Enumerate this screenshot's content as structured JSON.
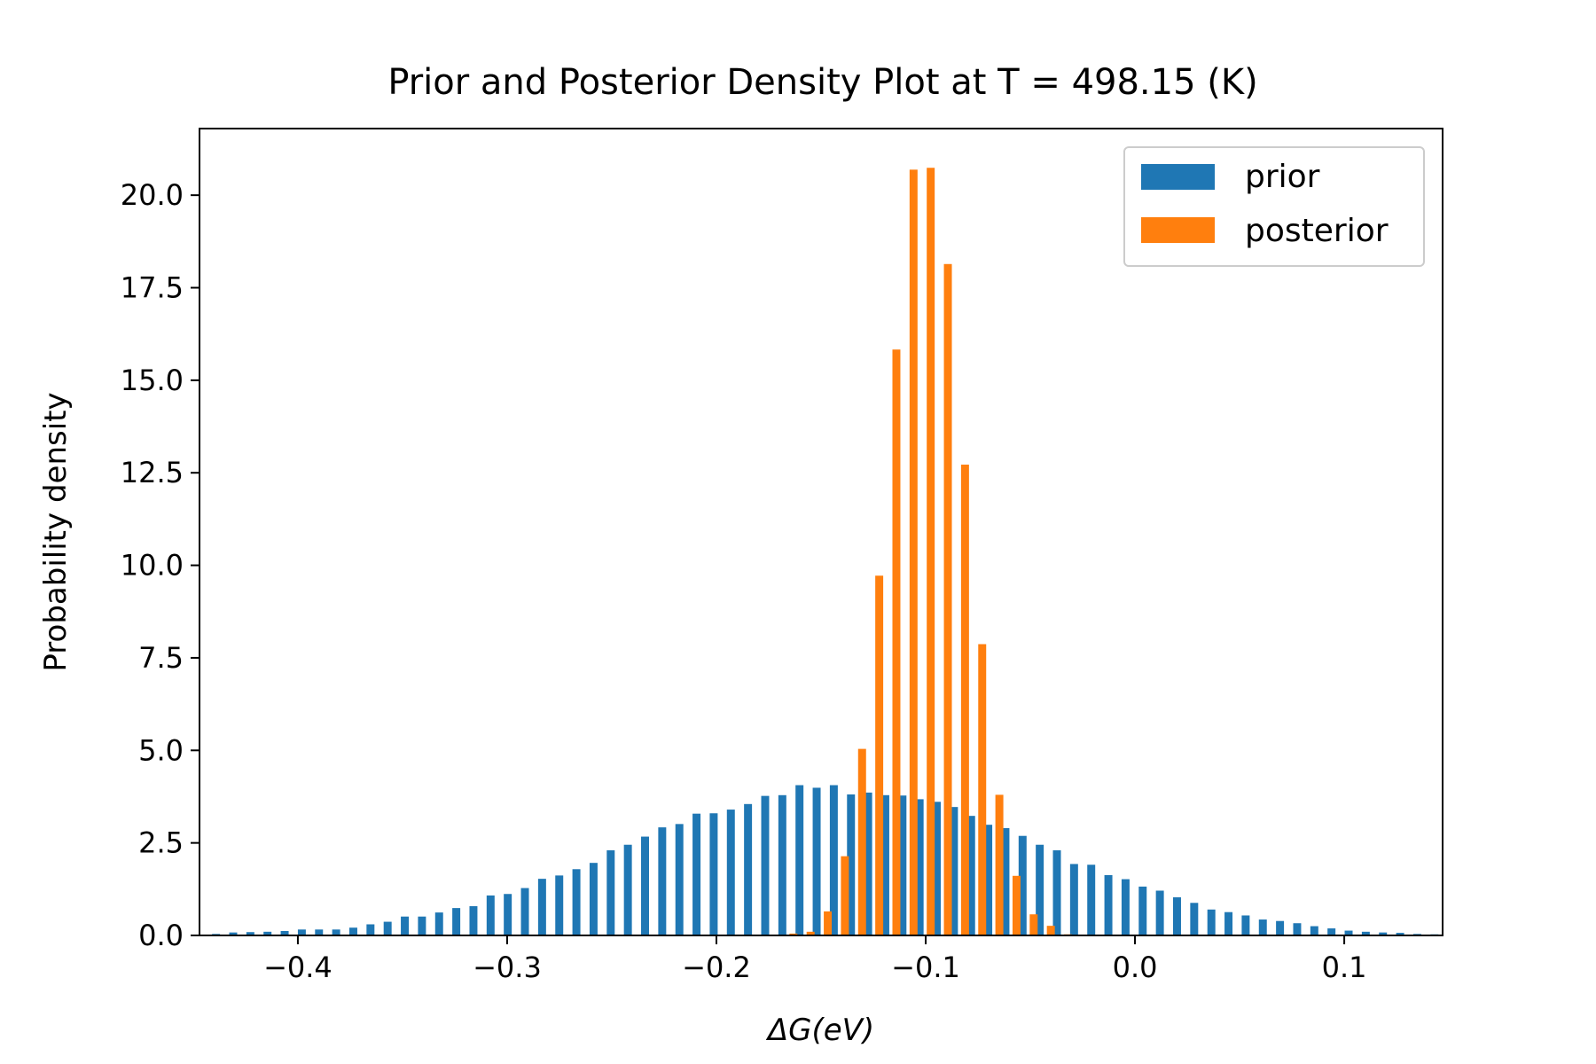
{
  "chart_data": {
    "type": "bar",
    "title": "Prior and Posterior Density Plot at T = 498.15 (K)",
    "xlabel": "ΔG(eV)",
    "ylabel": "Probability density",
    "xlim": [
      -0.447,
      0.147
    ],
    "ylim": [
      0,
      21.8
    ],
    "grid": false,
    "legend_position": "top-right",
    "x_ticks": [
      {
        "value": -0.4,
        "label": "−0.4"
      },
      {
        "value": -0.3,
        "label": "−0.3"
      },
      {
        "value": -0.2,
        "label": "−0.2"
      },
      {
        "value": -0.1,
        "label": "−0.1"
      },
      {
        "value": 0.0,
        "label": "0.0"
      },
      {
        "value": 0.1,
        "label": "0.1"
      }
    ],
    "y_ticks": [
      {
        "value": 0.0,
        "label": "0.0"
      },
      {
        "value": 2.5,
        "label": "2.5"
      },
      {
        "value": 5.0,
        "label": "5.0"
      },
      {
        "value": 7.5,
        "label": "7.5"
      },
      {
        "value": 10.0,
        "label": "10.0"
      },
      {
        "value": 12.5,
        "label": "12.5"
      },
      {
        "value": 15.0,
        "label": "15.0"
      },
      {
        "value": 17.5,
        "label": "17.5"
      },
      {
        "value": 20.0,
        "label": "20.0"
      }
    ],
    "series": [
      {
        "name": "prior",
        "color": "#1f77b4",
        "bin_start": -0.441,
        "bin_width": 0.0082,
        "bar_width": 0.0038,
        "values": [
          0.04,
          0.08,
          0.09,
          0.1,
          0.12,
          0.16,
          0.16,
          0.16,
          0.21,
          0.3,
          0.37,
          0.51,
          0.51,
          0.62,
          0.74,
          0.79,
          1.08,
          1.12,
          1.28,
          1.53,
          1.62,
          1.79,
          1.96,
          2.3,
          2.45,
          2.67,
          2.92,
          3.01,
          3.29,
          3.3,
          3.4,
          3.55,
          3.77,
          3.79,
          4.06,
          3.99,
          4.06,
          3.81,
          3.86,
          3.79,
          3.78,
          3.68,
          3.61,
          3.47,
          3.23,
          2.99,
          2.9,
          2.69,
          2.45,
          2.3,
          1.93,
          1.91,
          1.63,
          1.52,
          1.32,
          1.21,
          1.03,
          0.88,
          0.7,
          0.63,
          0.54,
          0.43,
          0.39,
          0.33,
          0.25,
          0.19,
          0.13,
          0.1,
          0.08,
          0.07,
          0.04,
          0.03
        ]
      },
      {
        "name": "posterior",
        "color": "#ff7f0e",
        "bin_start": -0.1651,
        "bin_width": 0.0082,
        "bar_width": 0.0038,
        "values": [
          0.05,
          0.1,
          0.65,
          2.14,
          5.04,
          9.72,
          15.83,
          20.69,
          20.74,
          18.14,
          12.72,
          7.87,
          3.8,
          1.61,
          0.57,
          0.26,
          0.03
        ]
      }
    ]
  }
}
